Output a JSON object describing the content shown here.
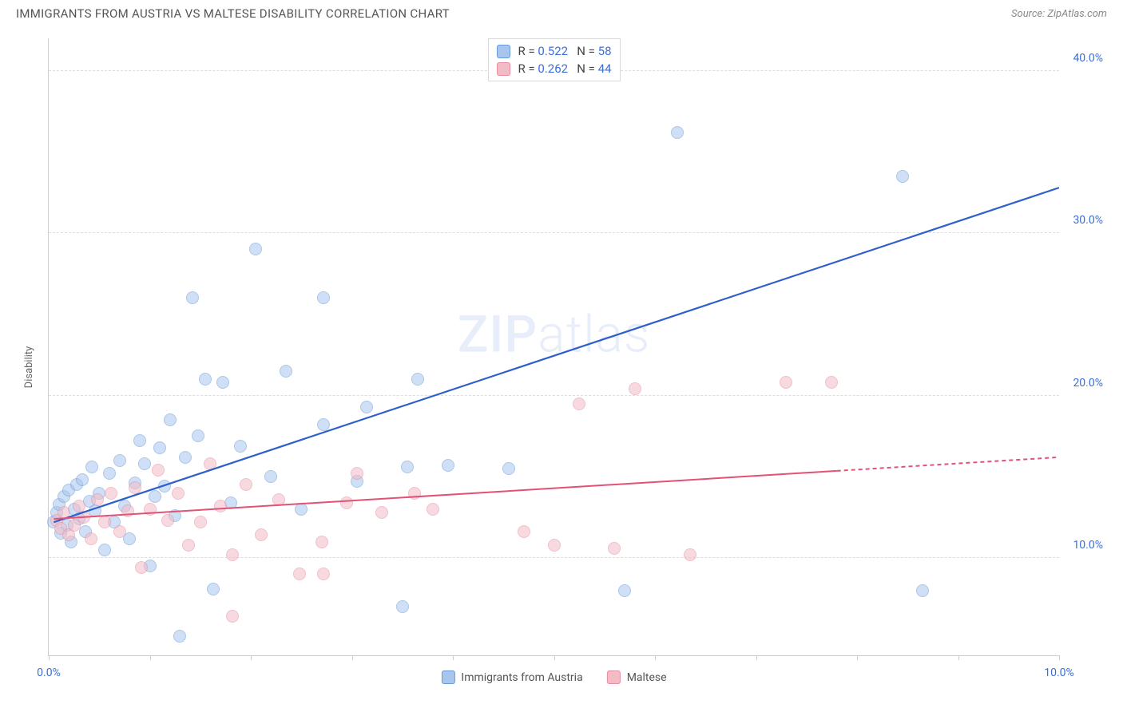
{
  "title": "IMMIGRANTS FROM AUSTRIA VS MALTESE DISABILITY CORRELATION CHART",
  "source": "Source: ZipAtlas.com",
  "ylabel": "Disability",
  "watermark_zip": "ZIP",
  "watermark_atlas": "atlas",
  "chart": {
    "type": "scatter",
    "xlim": [
      0,
      10
    ],
    "ylim": [
      4,
      42
    ],
    "x_ticks": [
      0,
      1,
      2,
      3,
      4,
      5,
      6,
      7,
      8,
      9,
      10
    ],
    "x_tick_labels": {
      "0": "0.0%",
      "10": "10.0%"
    },
    "y_gridlines": [
      10,
      20,
      30,
      40
    ],
    "y_tick_labels": {
      "10": "10.0%",
      "20": "20.0%",
      "30": "30.0%",
      "40": "40.0%"
    },
    "background_color": "#ffffff",
    "grid_color": "#dddddd",
    "axis_color": "#cccccc",
    "label_color": "#3b6fd8",
    "marker_radius": 8,
    "marker_opacity": 0.55,
    "series": [
      {
        "name": "Immigrants from Austria",
        "fill": "#a8c5ed",
        "stroke": "#6a9ad6",
        "line_color": "#2f5fc9",
        "line_width": 2.2,
        "R": "0.522",
        "N": "58",
        "trend": {
          "x1": 0.05,
          "y1": 12.2,
          "x2": 10.0,
          "y2": 32.8,
          "solid_until_x": 10.0
        },
        "points": [
          [
            0.05,
            12.2
          ],
          [
            0.08,
            12.8
          ],
          [
            0.1,
            13.3
          ],
          [
            0.12,
            11.5
          ],
          [
            0.15,
            13.8
          ],
          [
            0.18,
            12.0
          ],
          [
            0.2,
            14.2
          ],
          [
            0.22,
            11.0
          ],
          [
            0.25,
            13.0
          ],
          [
            0.28,
            14.5
          ],
          [
            0.3,
            12.4
          ],
          [
            0.33,
            14.8
          ],
          [
            0.36,
            11.6
          ],
          [
            0.4,
            13.5
          ],
          [
            0.43,
            15.6
          ],
          [
            0.46,
            12.9
          ],
          [
            0.5,
            14.0
          ],
          [
            0.55,
            10.5
          ],
          [
            0.6,
            15.2
          ],
          [
            0.65,
            12.2
          ],
          [
            0.7,
            16.0
          ],
          [
            0.75,
            13.2
          ],
          [
            0.8,
            11.2
          ],
          [
            0.85,
            14.6
          ],
          [
            0.9,
            17.2
          ],
          [
            0.95,
            15.8
          ],
          [
            1.0,
            9.5
          ],
          [
            1.05,
            13.8
          ],
          [
            1.1,
            16.8
          ],
          [
            1.15,
            14.4
          ],
          [
            1.2,
            18.5
          ],
          [
            1.25,
            12.6
          ],
          [
            1.3,
            5.2
          ],
          [
            1.35,
            16.2
          ],
          [
            1.42,
            26.0
          ],
          [
            1.48,
            17.5
          ],
          [
            1.55,
            21.0
          ],
          [
            1.63,
            8.1
          ],
          [
            1.72,
            20.8
          ],
          [
            1.8,
            13.4
          ],
          [
            1.9,
            16.9
          ],
          [
            2.05,
            29.0
          ],
          [
            2.2,
            15.0
          ],
          [
            2.35,
            21.5
          ],
          [
            2.5,
            13.0
          ],
          [
            2.72,
            26.0
          ],
          [
            2.72,
            18.2
          ],
          [
            3.05,
            14.7
          ],
          [
            3.15,
            19.3
          ],
          [
            3.5,
            7.0
          ],
          [
            3.55,
            15.6
          ],
          [
            3.65,
            21.0
          ],
          [
            3.95,
            15.7
          ],
          [
            4.55,
            15.5
          ],
          [
            5.7,
            8.0
          ],
          [
            6.22,
            36.2
          ],
          [
            8.45,
            33.5
          ],
          [
            8.65,
            8.0
          ]
        ]
      },
      {
        "name": "Maltese",
        "fill": "#f2bcc7",
        "stroke": "#e88ba0",
        "line_color": "#e15276",
        "line_width": 2.0,
        "R": "0.262",
        "N": "44",
        "trend": {
          "x1": 0.05,
          "y1": 12.4,
          "x2": 10.0,
          "y2": 16.2,
          "solid_until_x": 7.8
        },
        "points": [
          [
            0.08,
            12.3
          ],
          [
            0.12,
            11.8
          ],
          [
            0.15,
            12.8
          ],
          [
            0.2,
            11.4
          ],
          [
            0.25,
            12.0
          ],
          [
            0.3,
            13.2
          ],
          [
            0.35,
            12.5
          ],
          [
            0.42,
            11.2
          ],
          [
            0.48,
            13.6
          ],
          [
            0.55,
            12.2
          ],
          [
            0.62,
            14.0
          ],
          [
            0.7,
            11.6
          ],
          [
            0.78,
            12.9
          ],
          [
            0.85,
            14.3
          ],
          [
            0.92,
            9.4
          ],
          [
            1.0,
            13.0
          ],
          [
            1.08,
            15.4
          ],
          [
            1.18,
            12.3
          ],
          [
            1.28,
            14.0
          ],
          [
            1.38,
            10.8
          ],
          [
            1.5,
            12.2
          ],
          [
            1.6,
            15.8
          ],
          [
            1.7,
            13.2
          ],
          [
            1.82,
            10.2
          ],
          [
            1.82,
            6.4
          ],
          [
            1.95,
            14.5
          ],
          [
            2.1,
            11.4
          ],
          [
            2.28,
            13.6
          ],
          [
            2.48,
            9.0
          ],
          [
            2.7,
            11.0
          ],
          [
            2.72,
            9.0
          ],
          [
            2.95,
            13.4
          ],
          [
            3.05,
            15.2
          ],
          [
            3.3,
            12.8
          ],
          [
            3.62,
            14.0
          ],
          [
            3.8,
            13.0
          ],
          [
            4.7,
            11.6
          ],
          [
            5.0,
            10.8
          ],
          [
            5.25,
            19.5
          ],
          [
            5.6,
            10.6
          ],
          [
            5.8,
            20.4
          ],
          [
            6.35,
            10.2
          ],
          [
            7.3,
            20.8
          ],
          [
            7.75,
            20.8
          ]
        ]
      }
    ],
    "legend_box": {
      "R_label": "R =",
      "N_label": "N ="
    },
    "bottom_legend": {
      "label1": "Immigrants from Austria",
      "label2": "Maltese"
    }
  }
}
